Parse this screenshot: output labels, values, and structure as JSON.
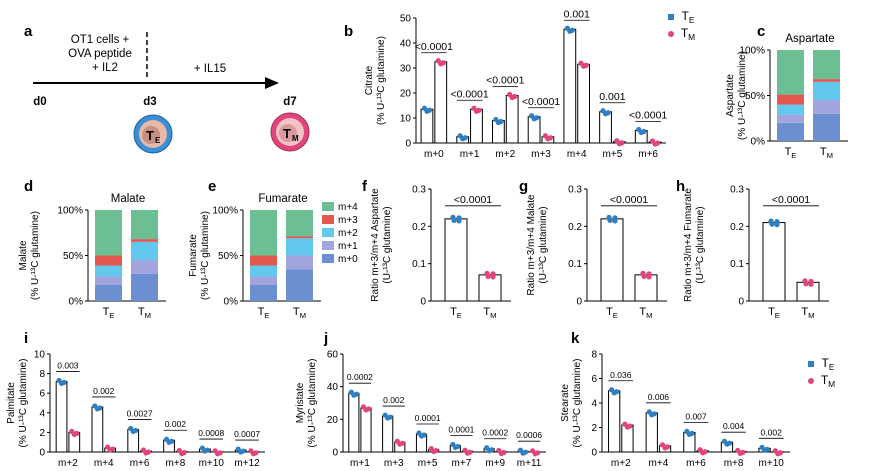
{
  "colors": {
    "te": "#2f7fc1",
    "tm": "#e0457b",
    "m0": "#6b8fd0",
    "m1": "#a2a4dd",
    "m2": "#62c8ee",
    "m3": "#e2584e",
    "m4": "#6cbf93"
  },
  "panel_a": {
    "letter": "a",
    "text1": "OT1 cells +",
    "text2": "OVA peptide",
    "text3": "+ IL2",
    "il15": "+ IL15",
    "d0": "d0",
    "d3": "d3",
    "d7": "d7",
    "te_label": "T",
    "te_sub": "E",
    "tm_label": "T",
    "tm_sub": "M"
  },
  "stack_legend": [
    "m+4",
    "m+3",
    "m+2",
    "m+1",
    "m+0"
  ],
  "chart_data": [
    {
      "panel": "b",
      "type": "bar",
      "ylabel1": "Citrate",
      "ylabel2": "(% U-¹³C glutamine)",
      "categories": [
        "m+0",
        "m+1",
        "m+2",
        "m+3",
        "m+4",
        "m+5",
        "m+6"
      ],
      "ylim": [
        0,
        50
      ],
      "yticks": [
        "0",
        "10",
        "20",
        "30",
        "40",
        "50"
      ],
      "legend": [
        "T",
        "T"
      ],
      "legend_sub": [
        "E",
        "M"
      ],
      "series": [
        {
          "name": "TE",
          "values": [
            13.5,
            2.5,
            9.0,
            10.5,
            45.5,
            12.5,
            5.0
          ]
        },
        {
          "name": "TM",
          "values": [
            32.5,
            13.5,
            19.0,
            2.5,
            31.5,
            0.5,
            0.4
          ]
        }
      ],
      "pvalues": [
        "<0.0001",
        "<0.0001",
        "<0.0001",
        "<0.0001",
        "0.001",
        "0.001",
        "<0.0001"
      ]
    },
    {
      "panel": "c",
      "type": "bar",
      "stacked": true,
      "title": "Aspartate",
      "ylabel1": "Aspartate",
      "ylabel2": "(% U-¹³C glutamine)",
      "categories": [
        "T",
        "T"
      ],
      "category_sub": [
        "E",
        "M"
      ],
      "yticks": [
        "0%",
        "50%",
        "100%"
      ],
      "series": [
        {
          "name": "m+0",
          "values": [
            20,
            30
          ]
        },
        {
          "name": "m+1",
          "values": [
            9,
            15
          ]
        },
        {
          "name": "m+2",
          "values": [
            11,
            20
          ]
        },
        {
          "name": "m+3",
          "values": [
            11,
            3
          ]
        },
        {
          "name": "m+4",
          "values": [
            49,
            32
          ]
        }
      ]
    },
    {
      "panel": "d",
      "type": "bar",
      "stacked": true,
      "title": "Malate",
      "ylabel1": "Malate",
      "ylabel2": "(% U-¹³C glutamine)",
      "categories": [
        "T",
        "T"
      ],
      "category_sub": [
        "E",
        "M"
      ],
      "yticks": [
        "0%",
        "50%",
        "100%"
      ],
      "series": [
        {
          "name": "m+0",
          "values": [
            18,
            30
          ]
        },
        {
          "name": "m+1",
          "values": [
            9,
            15
          ]
        },
        {
          "name": "m+2",
          "values": [
            12,
            20
          ]
        },
        {
          "name": "m+3",
          "values": [
            11,
            3
          ]
        },
        {
          "name": "m+4",
          "values": [
            50,
            32
          ]
        }
      ]
    },
    {
      "panel": "e",
      "type": "bar",
      "stacked": true,
      "title": "Fumarate",
      "ylabel1": "Fumarate",
      "ylabel2": "(% U-¹³C glutamine)",
      "categories": [
        "T",
        "T"
      ],
      "category_sub": [
        "E",
        "M"
      ],
      "yticks": [
        "0%",
        "50%",
        "100%"
      ],
      "series": [
        {
          "name": "m+0",
          "values": [
            18,
            35
          ]
        },
        {
          "name": "m+1",
          "values": [
            9,
            15
          ]
        },
        {
          "name": "m+2",
          "values": [
            12,
            19
          ]
        },
        {
          "name": "m+3",
          "values": [
            11,
            2
          ]
        },
        {
          "name": "m+4",
          "values": [
            50,
            29
          ]
        }
      ]
    },
    {
      "panel": "f",
      "type": "bar",
      "ylabel1": "Ratio m+3/m+4 Aspartate",
      "ylabel2": "(U-¹³C glutamine)",
      "categories": [
        "T",
        "T"
      ],
      "category_sub": [
        "E",
        "M"
      ],
      "ylim": [
        0,
        0.3
      ],
      "yticks": [
        "0",
        "0.1",
        "0.2",
        "0.3"
      ],
      "values": [
        0.22,
        0.07
      ],
      "pvalue": "<0.0001"
    },
    {
      "panel": "g",
      "type": "bar",
      "ylabel1": "Ratio m+3/m+4 Malate",
      "ylabel2": "(U-¹³C glutamine)",
      "categories": [
        "T",
        "T"
      ],
      "category_sub": [
        "E",
        "M"
      ],
      "ylim": [
        0,
        0.3
      ],
      "yticks": [
        "0",
        "0.1",
        "0.2",
        "0.3"
      ],
      "values": [
        0.22,
        0.07
      ],
      "pvalue": "<0.0001"
    },
    {
      "panel": "h",
      "type": "bar",
      "ylabel1": "Ratio m+3/m+4 Fumarate",
      "ylabel2": "(U-¹³C glutamine)",
      "categories": [
        "T",
        "T"
      ],
      "category_sub": [
        "E",
        "M"
      ],
      "ylim": [
        0,
        0.3
      ],
      "yticks": [
        "0",
        "0.1",
        "0.2",
        "0.3"
      ],
      "values": [
        0.21,
        0.05
      ],
      "pvalue": "<0.0001"
    },
    {
      "panel": "i",
      "type": "bar",
      "ylabel1": "Palmitate",
      "ylabel2": "(% U-¹³C glutamine)",
      "categories": [
        "m+2",
        "m+4",
        "m+6",
        "m+8",
        "m+10",
        "m+12"
      ],
      "ylim": [
        0,
        10
      ],
      "yticks": [
        "0",
        "2",
        "4",
        "6",
        "8",
        "10"
      ],
      "series": [
        {
          "name": "TE",
          "values": [
            7.2,
            4.6,
            2.3,
            1.2,
            0.3,
            0.2
          ]
        },
        {
          "name": "TM",
          "values": [
            2.0,
            0.4,
            0.1,
            0.05,
            0.02,
            0.02
          ]
        }
      ],
      "pvalues": [
        "0.003",
        "0.002",
        "0.0027",
        "0.002",
        "0.0008",
        "0.0007"
      ]
    },
    {
      "panel": "j",
      "type": "bar",
      "ylabel1": "Myristate",
      "ylabel2": "(% U-¹³C glutamine)",
      "categories": [
        "m+1",
        "m+3",
        "m+5",
        "m+7",
        "m+9",
        "m+11"
      ],
      "ylim": [
        0,
        60
      ],
      "yticks": [
        "0",
        "20",
        "40",
        "60"
      ],
      "series": [
        {
          "name": "TE",
          "values": [
            36,
            22,
            11,
            4,
            2,
            0.5
          ]
        },
        {
          "name": "TM",
          "values": [
            27,
            6,
            1.5,
            0.5,
            0.3,
            0.1
          ]
        }
      ],
      "pvalues": [
        "0.0002",
        "0.002",
        "0.0001",
        "0.0001",
        "0.0002",
        "0.0006"
      ]
    },
    {
      "panel": "k",
      "type": "bar",
      "ylabel1": "Stearate",
      "ylabel2": "(% U-¹³C glutamine)",
      "categories": [
        "m+2",
        "m+4",
        "m+6",
        "m+8",
        "m+10"
      ],
      "ylim": [
        0,
        8
      ],
      "yticks": [
        "0",
        "2",
        "4",
        "6",
        "8"
      ],
      "legend": [
        "T",
        "T"
      ],
      "legend_sub": [
        "E",
        "M"
      ],
      "series": [
        {
          "name": "TE",
          "values": [
            5.0,
            3.2,
            1.6,
            0.8,
            0.3
          ]
        },
        {
          "name": "TM",
          "values": [
            2.2,
            0.5,
            0.1,
            0.05,
            0.02
          ]
        }
      ],
      "pvalues": [
        "0.036",
        "0.006",
        "0.007",
        "0.004",
        "0.002"
      ]
    }
  ]
}
